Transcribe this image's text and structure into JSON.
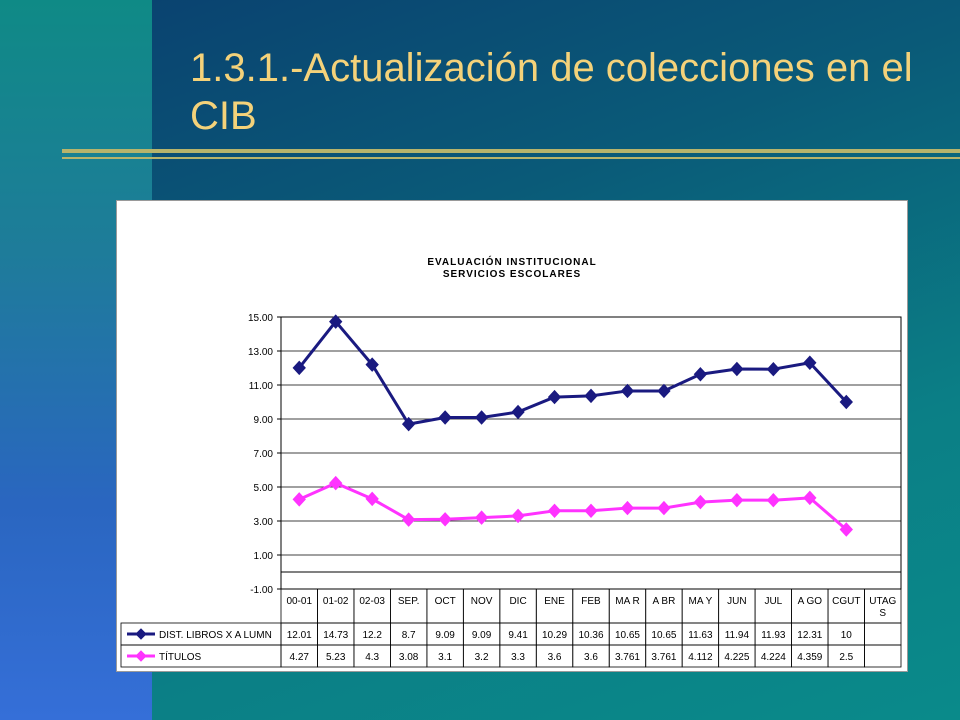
{
  "slide": {
    "title": "1.3.1.-Actualización de colecciones en el CIB"
  },
  "chart_data": {
    "type": "line",
    "title": "EVALUACIÓN INSTITUCIONAL",
    "subtitle": "SERVICIOS ESCOLARES",
    "categories": [
      "00-01",
      "01-02",
      "02-03",
      "SEP.",
      "OCT",
      "NOV",
      "DIC",
      "ENE",
      "FEB",
      "MAR",
      "ABR",
      "MAY",
      "JUN",
      "JUL",
      "AGO",
      "CGUT",
      "UTAGS"
    ],
    "category_labels": [
      "00-01",
      "01-02",
      "02-03",
      "SEP.",
      "OCT",
      "NOV",
      "DIC",
      "ENE",
      "FEB",
      "MA R",
      "A BR",
      "MA Y",
      "JUN",
      "JUL",
      "A GO",
      "CGUT",
      "UTAG\nS"
    ],
    "ylim": [
      -1,
      15
    ],
    "yticks": [
      "15.00",
      "13.00",
      "11.00",
      "9.00",
      "7.00",
      "5.00",
      "3.00",
      "1.00",
      "-1.00"
    ],
    "ytick_values": [
      15,
      13,
      11,
      9,
      7,
      5,
      3,
      1,
      -1
    ],
    "grid": true,
    "legend_placement": "data-table",
    "series": [
      {
        "name": "DIST. LIBROS X A LUMN",
        "color": "#1a1a80",
        "marker": "diamond",
        "values": [
          12.01,
          14.73,
          12.2,
          8.7,
          9.09,
          9.09,
          9.41,
          10.29,
          10.36,
          10.65,
          10.65,
          11.63,
          11.94,
          11.93,
          12.31,
          10,
          null
        ],
        "labels": [
          "12.01",
          "14.73",
          "12.2",
          "8.7",
          "9.09",
          "9.09",
          "9.41",
          "10.29",
          "10.36",
          "10.65",
          "10.65",
          "11.63",
          "11.94",
          "11.93",
          "12.31",
          "10",
          ""
        ]
      },
      {
        "name": "TÍTULOS",
        "color": "#ff33ff",
        "marker": "diamond",
        "values": [
          4.27,
          5.23,
          4.3,
          3.08,
          3.1,
          3.2,
          3.3,
          3.6,
          3.6,
          3.761,
          3.761,
          4.112,
          4.225,
          4.224,
          4.359,
          2.5,
          null
        ],
        "labels": [
          "4.27",
          "5.23",
          "4.3",
          "3.08",
          "3.1",
          "3.2",
          "3.3",
          "3.6",
          "3.6",
          "3.761",
          "3.761",
          "4.112",
          "4.225",
          "4.224",
          "4.359",
          "2.5",
          ""
        ]
      }
    ]
  }
}
